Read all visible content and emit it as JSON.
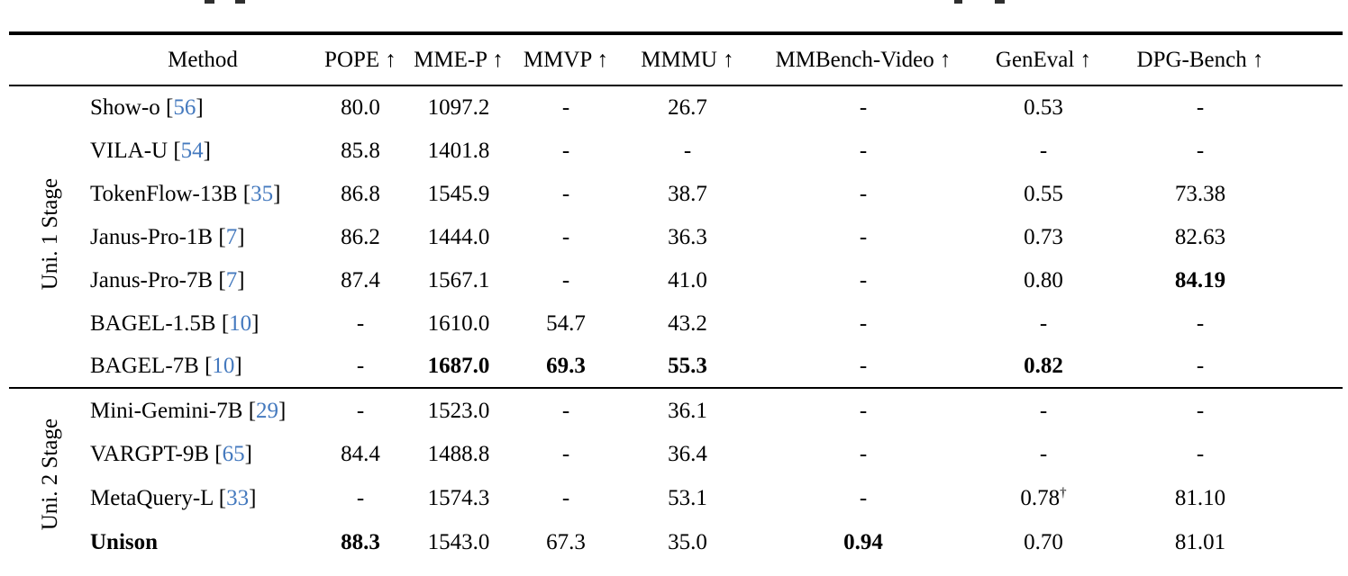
{
  "table": {
    "cite_color": "#4479BE",
    "headers": [
      "Method",
      "POPE ↑",
      "MME-P ↑",
      "MMVP ↑",
      "MMMU ↑",
      "MMBench-Video ↑",
      "GenEval ↑",
      "DPG-Bench ↑"
    ],
    "groups": [
      {
        "label": "Uni. 1 Stage",
        "rows": [
          {
            "method": "Show-o",
            "cite": "56",
            "bold_method": false,
            "cells": [
              {
                "t": "80.0"
              },
              {
                "t": "1097.2"
              },
              {
                "t": "-"
              },
              {
                "t": "26.7"
              },
              {
                "t": "-"
              },
              {
                "t": "0.53"
              },
              {
                "t": "-"
              }
            ]
          },
          {
            "method": "VILA-U",
            "cite": "54",
            "bold_method": false,
            "cells": [
              {
                "t": "85.8"
              },
              {
                "t": "1401.8"
              },
              {
                "t": "-"
              },
              {
                "t": "-"
              },
              {
                "t": "-"
              },
              {
                "t": "-"
              },
              {
                "t": "-"
              }
            ]
          },
          {
            "method": "TokenFlow-13B",
            "cite": "35",
            "bold_method": false,
            "cells": [
              {
                "t": "86.8"
              },
              {
                "t": "1545.9"
              },
              {
                "t": "-"
              },
              {
                "t": "38.7"
              },
              {
                "t": "-"
              },
              {
                "t": "0.55"
              },
              {
                "t": "73.38"
              }
            ]
          },
          {
            "method": "Janus-Pro-1B",
            "cite": "7",
            "bold_method": false,
            "cells": [
              {
                "t": "86.2"
              },
              {
                "t": "1444.0"
              },
              {
                "t": "-"
              },
              {
                "t": "36.3"
              },
              {
                "t": "-"
              },
              {
                "t": "0.73"
              },
              {
                "t": "82.63"
              }
            ]
          },
          {
            "method": "Janus-Pro-7B",
            "cite": "7",
            "bold_method": false,
            "cells": [
              {
                "t": "87.4"
              },
              {
                "t": "1567.1"
              },
              {
                "t": "-"
              },
              {
                "t": "41.0"
              },
              {
                "t": "-"
              },
              {
                "t": "0.80"
              },
              {
                "t": "84.19",
                "b": true
              }
            ]
          },
          {
            "method": "BAGEL-1.5B",
            "cite": "10",
            "bold_method": false,
            "cells": [
              {
                "t": "-"
              },
              {
                "t": "1610.0"
              },
              {
                "t": "54.7"
              },
              {
                "t": "43.2"
              },
              {
                "t": "-"
              },
              {
                "t": "-"
              },
              {
                "t": "-"
              }
            ]
          },
          {
            "method": "BAGEL-7B",
            "cite": "10",
            "bold_method": false,
            "cells": [
              {
                "t": "-"
              },
              {
                "t": "1687.0",
                "b": true
              },
              {
                "t": "69.3",
                "b": true
              },
              {
                "t": "55.3",
                "b": true
              },
              {
                "t": "-"
              },
              {
                "t": "0.82",
                "b": true
              },
              {
                "t": "-"
              }
            ]
          }
        ]
      },
      {
        "label": "Uni. 2 Stage",
        "rows": [
          {
            "method": "Mini-Gemini-7B",
            "cite": "29",
            "bold_method": false,
            "cells": [
              {
                "t": "-"
              },
              {
                "t": "1523.0"
              },
              {
                "t": "-"
              },
              {
                "t": "36.1"
              },
              {
                "t": "-"
              },
              {
                "t": "-"
              },
              {
                "t": "-"
              }
            ]
          },
          {
            "method": "VARGPT-9B",
            "cite": "65",
            "bold_method": false,
            "cells": [
              {
                "t": "84.4"
              },
              {
                "t": "1488.8"
              },
              {
                "t": "-"
              },
              {
                "t": "36.4"
              },
              {
                "t": "-"
              },
              {
                "t": "-"
              },
              {
                "t": "-"
              }
            ]
          },
          {
            "method": "MetaQuery-L",
            "cite": "33",
            "bold_method": false,
            "cells": [
              {
                "t": "-"
              },
              {
                "t": "1574.3"
              },
              {
                "t": "-"
              },
              {
                "t": "53.1"
              },
              {
                "t": "-"
              },
              {
                "t": "0.78",
                "sup": "†"
              },
              {
                "t": "81.10"
              }
            ]
          },
          {
            "method": "Unison",
            "cite": "",
            "bold_method": true,
            "cells": [
              {
                "t": "88.3",
                "b": true
              },
              {
                "t": "1543.0"
              },
              {
                "t": "67.3"
              },
              {
                "t": "35.0"
              },
              {
                "t": "0.94",
                "b": true
              },
              {
                "t": "0.70"
              },
              {
                "t": "81.01"
              }
            ]
          }
        ]
      }
    ]
  }
}
